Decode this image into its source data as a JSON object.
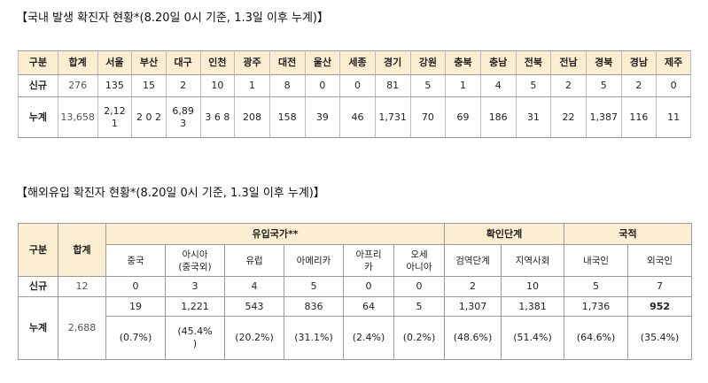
{
  "domestic": {
    "title": "【국내 발생 확진자 현황*(8.20일 0시 기준, 1.3일 이후 누계)】",
    "headers": [
      "구분",
      "합계",
      "서울",
      "부산",
      "대구",
      "인천",
      "광주",
      "대전",
      "울산",
      "세종",
      "경기",
      "강원",
      "충북",
      "충남",
      "전북",
      "전남",
      "경북",
      "경남",
      "제주"
    ],
    "rows": [
      {
        "label": "신규",
        "values": [
          "276",
          "135",
          "15",
          "2",
          "10",
          "1",
          "8",
          "0",
          "0",
          "81",
          "5",
          "1",
          "4",
          "5",
          "2",
          "5",
          "2",
          "0"
        ]
      },
      {
        "label": "누계",
        "values": [
          "13,658",
          "2,12\n1",
          "2 0 2",
          "6,89\n3",
          "3 6 8",
          "208",
          "158",
          "39",
          "46",
          "1,731",
          "70",
          "69",
          "186",
          "31",
          "22",
          "1,387",
          "116",
          "11"
        ]
      }
    ]
  },
  "overseas": {
    "title": "【해외유입 확진자 현황*(8.20일 0시 기준, 1.3일 이후 누계)】",
    "col_label": "구분",
    "total_label": "합계",
    "group_headers": {
      "origin": "유입국가**",
      "stage": "확인단계",
      "nationality": "국적"
    },
    "sub_headers": [
      "중국",
      "아시아\n(중국외)",
      "유럽",
      "아메리카",
      "아프리\n카",
      "오세\n아니아",
      "검역단계",
      "지역사회",
      "내국인",
      "외국인"
    ],
    "new_row": {
      "label": "신규",
      "total": "12",
      "values": [
        "0",
        "3",
        "4",
        "5",
        "0",
        "0",
        "2",
        "10",
        "5",
        "7"
      ]
    },
    "cum_row": {
      "label": "누계",
      "total": "2,688",
      "values": [
        "19",
        "1,221",
        "543",
        "836",
        "64",
        "5",
        "1,307",
        "1,381",
        "1,736",
        "952"
      ],
      "pct": [
        "(0.7%)",
        "(45.4%\n)",
        "(20.2%)",
        "(31.1%)",
        "(2.4%)",
        "(0.2%)",
        "(48.6%)",
        "(51.4%)",
        "(64.6%)",
        "(35.4%)"
      ]
    }
  }
}
